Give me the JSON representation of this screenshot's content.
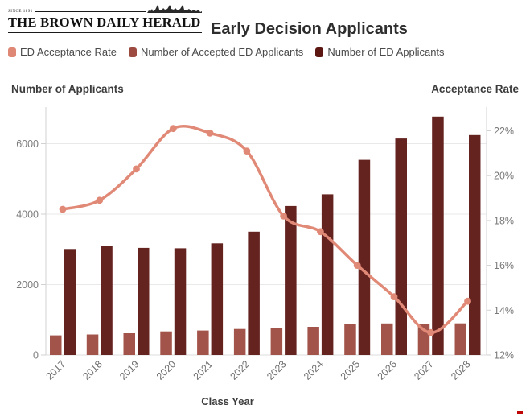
{
  "header": {
    "masthead_since": "SINCE 1891",
    "masthead_name": "THE BROWN DAILY HERALD",
    "title": "Early Decision Applicants"
  },
  "legend": [
    {
      "label": "ED Acceptance Rate",
      "color": "#df8876"
    },
    {
      "label": "Number of Accepted ED Applicants",
      "color": "#9d4a40"
    },
    {
      "label": "Number of ED Applicants",
      "color": "#5c1712"
    }
  ],
  "colors": {
    "line": "#e18977",
    "bar_accepted": "#a3544a",
    "bar_total": "#652320",
    "grid": "#e9e9e9",
    "axis_line": "#d2d2d2",
    "zero_line": "#dcdcdc"
  },
  "chart_data": {
    "type": "bar",
    "subtype": "grouped-bars-with-line",
    "title": "Early Decision Applicants",
    "categories": [
      "2017",
      "2018",
      "2019",
      "2020",
      "2021",
      "2022",
      "2023",
      "2024",
      "2025",
      "2026",
      "2027",
      "2028"
    ],
    "series": [
      {
        "name": "ED Acceptance Rate",
        "type": "line",
        "axis": "right",
        "values": [
          18.5,
          18.9,
          20.3,
          22.1,
          21.9,
          21.1,
          18.2,
          17.5,
          16.0,
          14.6,
          13.0,
          14.4
        ]
      },
      {
        "name": "Number of Accepted ED Applicants",
        "type": "bar",
        "axis": "left",
        "values": [
          558,
          583,
          617,
          669,
          695,
          738,
          769,
          800,
          885,
          896,
          879,
          898
        ]
      },
      {
        "name": "Number of ED Applicants",
        "type": "bar",
        "axis": "left",
        "values": [
          3010,
          3088,
          3043,
          3030,
          3170,
          3502,
          4230,
          4562,
          5540,
          6146,
          6770,
          6244
        ]
      }
    ],
    "left_axis": {
      "label": "Number of Applicants",
      "ticks": [
        0,
        2000,
        4000,
        6000
      ],
      "range": [
        0,
        7040
      ],
      "suffix": ""
    },
    "right_axis": {
      "label": "Acceptance Rate",
      "ticks": [
        12,
        14,
        16,
        18,
        20,
        22
      ],
      "range": [
        12,
        23.06
      ],
      "suffix": "%"
    },
    "x_label": "Class Year",
    "grid": "horizontal",
    "legend_position": "top"
  }
}
